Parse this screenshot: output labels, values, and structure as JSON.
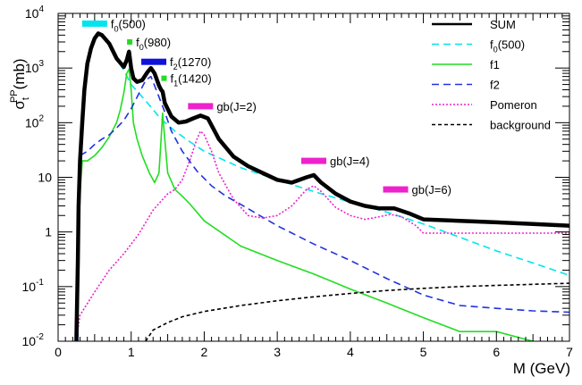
{
  "chart_data": {
    "type": "line",
    "title": "",
    "xlabel": "M (GeV)",
    "ylabel": {
      "main": "σ",
      "sup": "PP",
      "sub": "t",
      "unit": "(mb)"
    },
    "y_scale": "log",
    "xlim": [
      0,
      7
    ],
    "ylim": [
      0.01,
      10000
    ],
    "x_ticks": [
      "0",
      "1",
      "2",
      "3",
      "4",
      "5",
      "6",
      "7"
    ],
    "y_ticks": [
      {
        "base": "10",
        "exp": "-2",
        "plain": ""
      },
      {
        "base": "10",
        "exp": "-1",
        "plain": ""
      },
      {
        "base": "",
        "exp": "",
        "plain": "1"
      },
      {
        "base": "",
        "exp": "",
        "plain": "10"
      },
      {
        "base": "10",
        "exp": "2",
        "plain": ""
      },
      {
        "base": "10",
        "exp": "3",
        "plain": ""
      },
      {
        "base": "10",
        "exp": "4",
        "plain": ""
      }
    ],
    "legend_position": "top-right",
    "grid": false,
    "series": [
      {
        "name": "SUM",
        "color": "#000000",
        "dash": "solid",
        "points": [
          [
            0.25,
            0.01
          ],
          [
            0.27,
            0.3
          ],
          [
            0.28,
            3
          ],
          [
            0.3,
            20
          ],
          [
            0.33,
            100
          ],
          [
            0.36,
            400
          ],
          [
            0.4,
            1200
          ],
          [
            0.45,
            2300
          ],
          [
            0.5,
            3500
          ],
          [
            0.55,
            4300
          ],
          [
            0.6,
            4000
          ],
          [
            0.7,
            2800
          ],
          [
            0.8,
            1500
          ],
          [
            0.9,
            1050
          ],
          [
            0.94,
            1400
          ],
          [
            0.97,
            2000
          ],
          [
            1.0,
            1000
          ],
          [
            1.03,
            650
          ],
          [
            1.08,
            560
          ],
          [
            1.15,
            600
          ],
          [
            1.22,
            830
          ],
          [
            1.27,
            1000
          ],
          [
            1.32,
            800
          ],
          [
            1.38,
            480
          ],
          [
            1.41,
            400
          ],
          [
            1.43,
            370
          ],
          [
            1.46,
            230
          ],
          [
            1.55,
            130
          ],
          [
            1.65,
            100
          ],
          [
            1.75,
            105
          ],
          [
            1.85,
            120
          ],
          [
            1.95,
            135
          ],
          [
            2.05,
            120
          ],
          [
            2.2,
            50
          ],
          [
            2.4,
            24
          ],
          [
            2.6,
            16
          ],
          [
            2.8,
            12
          ],
          [
            3.0,
            9
          ],
          [
            3.2,
            8
          ],
          [
            3.4,
            10
          ],
          [
            3.5,
            11
          ],
          [
            3.6,
            8
          ],
          [
            3.8,
            5
          ],
          [
            4.0,
            3.6
          ],
          [
            4.2,
            3
          ],
          [
            4.4,
            2.7
          ],
          [
            4.6,
            2.7
          ],
          [
            4.8,
            2.2
          ],
          [
            5.0,
            1.7
          ],
          [
            5.5,
            1.6
          ],
          [
            6.0,
            1.5
          ],
          [
            6.5,
            1.4
          ],
          [
            7.0,
            1.3
          ]
        ]
      },
      {
        "name": "f0(500)",
        "color": "#00e5ee",
        "dash": "dashed",
        "points": [
          [
            0.26,
            0.01
          ],
          [
            0.28,
            3
          ],
          [
            0.3,
            20
          ],
          [
            0.33,
            100
          ],
          [
            0.36,
            400
          ],
          [
            0.4,
            1200
          ],
          [
            0.45,
            2300
          ],
          [
            0.5,
            3500
          ],
          [
            0.55,
            4300
          ],
          [
            0.6,
            4000
          ],
          [
            0.7,
            2800
          ],
          [
            0.8,
            1500
          ],
          [
            0.9,
            900
          ],
          [
            1.0,
            500
          ],
          [
            1.2,
            250
          ],
          [
            1.4,
            120
          ],
          [
            1.6,
            70
          ],
          [
            1.8,
            45
          ],
          [
            2.0,
            30
          ],
          [
            2.5,
            15
          ],
          [
            3.0,
            9
          ],
          [
            3.5,
            5.5
          ],
          [
            4.0,
            3.5
          ],
          [
            4.5,
            2.3
          ],
          [
            5.0,
            1.4
          ],
          [
            5.5,
            0.8
          ],
          [
            6.0,
            0.45
          ],
          [
            6.5,
            0.27
          ],
          [
            7.0,
            0.16
          ]
        ]
      },
      {
        "name": "f1",
        "color": "#22dd22",
        "dash": "solid",
        "points": [
          [
            0.27,
            0.01
          ],
          [
            0.28,
            0.3
          ],
          [
            0.3,
            5
          ],
          [
            0.33,
            20
          ],
          [
            0.4,
            20
          ],
          [
            0.5,
            25
          ],
          [
            0.6,
            35
          ],
          [
            0.7,
            55
          ],
          [
            0.8,
            100
          ],
          [
            0.85,
            170
          ],
          [
            0.9,
            350
          ],
          [
            0.94,
            800
          ],
          [
            0.97,
            950
          ],
          [
            1.0,
            400
          ],
          [
            1.03,
            100
          ],
          [
            1.08,
            50
          ],
          [
            1.15,
            25
          ],
          [
            1.25,
            12
          ],
          [
            1.32,
            8
          ],
          [
            1.38,
            12
          ],
          [
            1.41,
            50
          ],
          [
            1.43,
            150
          ],
          [
            1.46,
            50
          ],
          [
            1.5,
            12
          ],
          [
            1.6,
            6
          ],
          [
            1.7,
            4.5
          ],
          [
            1.8,
            3.3
          ],
          [
            2.0,
            1.6
          ],
          [
            2.5,
            0.55
          ],
          [
            3.0,
            0.3
          ],
          [
            3.5,
            0.17
          ],
          [
            4.0,
            0.09
          ],
          [
            4.5,
            0.05
          ],
          [
            5.0,
            0.027
          ],
          [
            5.5,
            0.015
          ],
          [
            6.0,
            0.015
          ],
          [
            6.5,
            0.01
          ],
          [
            6.7,
            0.008
          ]
        ]
      },
      {
        "name": "f2",
        "color": "#2233dd",
        "dash": "dashed",
        "points": [
          [
            0.27,
            0.01
          ],
          [
            0.28,
            10
          ],
          [
            0.3,
            25
          ],
          [
            0.4,
            30
          ],
          [
            0.5,
            40
          ],
          [
            0.6,
            50
          ],
          [
            0.7,
            60
          ],
          [
            0.8,
            80
          ],
          [
            0.9,
            110
          ],
          [
            1.0,
            180
          ],
          [
            1.1,
            330
          ],
          [
            1.2,
            600
          ],
          [
            1.27,
            700
          ],
          [
            1.35,
            380
          ],
          [
            1.45,
            170
          ],
          [
            1.55,
            70
          ],
          [
            1.7,
            30
          ],
          [
            1.9,
            13
          ],
          [
            2.1,
            7
          ],
          [
            2.3,
            4.5
          ],
          [
            2.5,
            3.2
          ],
          [
            3.0,
            1.3
          ],
          [
            3.5,
            0.6
          ],
          [
            4.0,
            0.3
          ],
          [
            4.5,
            0.14
          ],
          [
            5.0,
            0.07
          ],
          [
            5.5,
            0.045
          ],
          [
            6.0,
            0.04
          ],
          [
            6.5,
            0.036
          ],
          [
            7.0,
            0.034
          ]
        ]
      },
      {
        "name": "Pomeron",
        "color": "#ee22cc",
        "dash": "dotted",
        "points": [
          [
            0.25,
            0.01
          ],
          [
            0.3,
            0.03
          ],
          [
            0.5,
            0.08
          ],
          [
            0.7,
            0.2
          ],
          [
            0.9,
            0.4
          ],
          [
            1.1,
            0.9
          ],
          [
            1.3,
            2.5
          ],
          [
            1.5,
            5
          ],
          [
            1.6,
            6
          ],
          [
            1.7,
            9
          ],
          [
            1.8,
            20
          ],
          [
            1.9,
            50
          ],
          [
            1.95,
            70
          ],
          [
            2.0,
            60
          ],
          [
            2.1,
            30
          ],
          [
            2.2,
            12
          ],
          [
            2.4,
            4
          ],
          [
            2.6,
            2
          ],
          [
            2.8,
            1.8
          ],
          [
            3.0,
            2
          ],
          [
            3.2,
            3
          ],
          [
            3.4,
            6
          ],
          [
            3.5,
            7
          ],
          [
            3.6,
            5.5
          ],
          [
            3.8,
            2.8
          ],
          [
            4.0,
            2
          ],
          [
            4.2,
            1.7
          ],
          [
            4.4,
            1.9
          ],
          [
            4.55,
            2.1
          ],
          [
            4.7,
            1.9
          ],
          [
            4.9,
            1.3
          ],
          [
            5.0,
            0.95
          ],
          [
            5.5,
            0.95
          ],
          [
            6.0,
            0.95
          ],
          [
            7.0,
            0.95
          ]
        ]
      },
      {
        "name": "background",
        "color": "#000000",
        "dash": "shortdash",
        "points": [
          [
            1.15,
            0.008
          ],
          [
            1.3,
            0.016
          ],
          [
            1.5,
            0.022
          ],
          [
            1.7,
            0.028
          ],
          [
            2.0,
            0.035
          ],
          [
            2.5,
            0.045
          ],
          [
            3.0,
            0.055
          ],
          [
            3.5,
            0.065
          ],
          [
            4.0,
            0.075
          ],
          [
            4.5,
            0.085
          ],
          [
            5.0,
            0.093
          ],
          [
            5.5,
            0.1
          ],
          [
            6.0,
            0.105
          ],
          [
            6.5,
            0.11
          ],
          [
            7.0,
            0.115
          ]
        ]
      }
    ],
    "annotations": [
      {
        "main": "f",
        "sub": "0",
        "tail": "(500)",
        "color": "#00e5ee",
        "x": 0.5,
        "y": 6500,
        "thick": true
      },
      {
        "main": "f",
        "sub": "0",
        "tail": "(980)",
        "color": "#22dd22",
        "x": 0.98,
        "y": 3000,
        "thick": false
      },
      {
        "main": "f",
        "sub": "2",
        "tail": "(1270)",
        "color": "#1111dd",
        "x": 1.31,
        "y": 1300,
        "thick": true
      },
      {
        "main": "f",
        "sub": "1",
        "tail": "(1420)",
        "color": "#22dd22",
        "x": 1.45,
        "y": 650,
        "thick": false
      },
      {
        "main": "gb(J=2)",
        "sub": "",
        "tail": "",
        "color": "#ee22cc",
        "x": 1.95,
        "y": 200,
        "thick": true
      },
      {
        "main": "gb(J=4)",
        "sub": "",
        "tail": "",
        "color": "#ee22cc",
        "x": 3.5,
        "y": 20,
        "thick": true
      },
      {
        "main": "gb(J=6)",
        "sub": "",
        "tail": "",
        "color": "#ee22cc",
        "x": 4.62,
        "y": 6,
        "thick": true
      }
    ],
    "legend": [
      {
        "main": "SUM",
        "sub": "",
        "tail": "",
        "series": 0
      },
      {
        "main": "f",
        "sub": "0",
        "tail": "(500)",
        "series": 1
      },
      {
        "main": "f1",
        "sub": "",
        "tail": "",
        "series": 2
      },
      {
        "main": "f2",
        "sub": "",
        "tail": "",
        "series": 3
      },
      {
        "main": "Pomeron",
        "sub": "",
        "tail": "",
        "series": 4
      },
      {
        "main": "background",
        "sub": "",
        "tail": "",
        "series": 5
      }
    ]
  }
}
